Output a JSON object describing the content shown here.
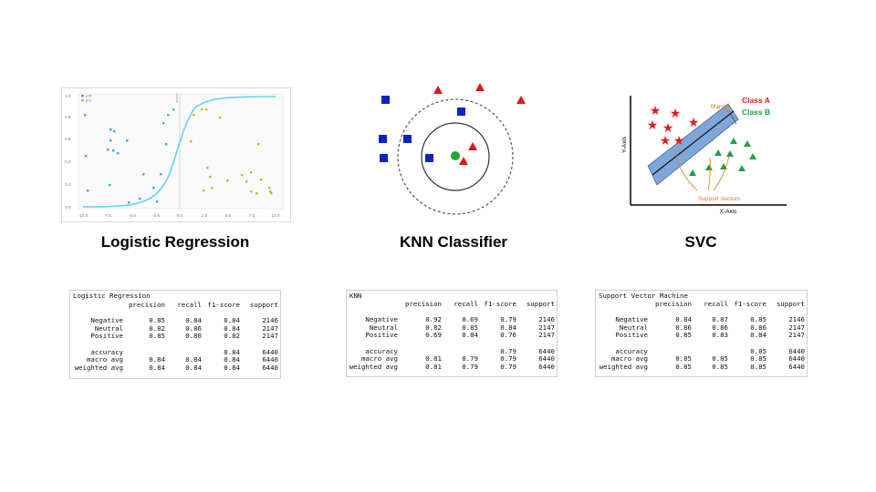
{
  "panels": [
    {
      "title": "Logistic Regression"
    },
    {
      "title": "KNN Classifier"
    },
    {
      "title": "SVC"
    }
  ],
  "logistic_plot": {
    "y_ticks": [
      "0.0",
      "0.2",
      "0.4",
      "0.6",
      "0.8",
      "1.0"
    ],
    "x_ticks": [
      "-10.0",
      "-7.5",
      "-5.0",
      "-2.5",
      "0.0",
      "2.5",
      "5.0",
      "7.5",
      "10.0"
    ],
    "legend": [
      "y=0",
      "y=1"
    ],
    "boundary_label": "thresh",
    "colors": {
      "curve": "#64d2f0",
      "class0": "#3fa9e0",
      "class1": "#d4b12a"
    }
  },
  "svc_diagram": {
    "y_axis_label": "Y-Axis",
    "x_axis_label": "X-Axis",
    "margin_label": "Margin",
    "class_a_label": "Class A",
    "class_b_label": "Class B",
    "support_vectors_label": "Support Vectors",
    "colors": {
      "class_a": "#e31c1c",
      "class_b": "#1ea14a",
      "band": "#7ea6d8",
      "annot": "#e07b1a"
    }
  },
  "knn_diagram": {
    "colors": {
      "square": "#0a22c8",
      "triangle": "#e01616",
      "query": "#22a83a"
    }
  },
  "reports": [
    {
      "name": "Logistic Regression",
      "header": [
        "precision",
        "recall",
        "f1-score",
        "support"
      ],
      "classes": [
        {
          "label": "Negative",
          "precision": "0.85",
          "recall": "0.84",
          "f1": "0.84",
          "support": "2146"
        },
        {
          "label": "Neutral",
          "precision": "0.82",
          "recall": "0.86",
          "f1": "0.84",
          "support": "2147"
        },
        {
          "label": "Positive",
          "precision": "0.85",
          "recall": "0.80",
          "f1": "0.82",
          "support": "2147"
        }
      ],
      "accuracy": {
        "label": "accuracy",
        "f1": "0.84",
        "support": "6440"
      },
      "macro": {
        "label": "macro avg",
        "precision": "0.84",
        "recall": "0.84",
        "f1": "0.84",
        "support": "6440"
      },
      "weighted": {
        "label": "weighted avg",
        "precision": "0.84",
        "recall": "0.84",
        "f1": "0.84",
        "support": "6440"
      }
    },
    {
      "name": "KNN",
      "header": [
        "precision",
        "recall",
        "f1-score",
        "support"
      ],
      "classes": [
        {
          "label": "Negative",
          "precision": "0.92",
          "recall": "0.69",
          "f1": "0.79",
          "support": "2146"
        },
        {
          "label": "Neutral",
          "precision": "0.82",
          "recall": "0.85",
          "f1": "0.84",
          "support": "2147"
        },
        {
          "label": "Positive",
          "precision": "0.69",
          "recall": "0.84",
          "f1": "0.76",
          "support": "2147"
        }
      ],
      "accuracy": {
        "label": "accuracy",
        "f1": "0.79",
        "support": "6440"
      },
      "macro": {
        "label": "macro avg",
        "precision": "0.81",
        "recall": "0.79",
        "f1": "0.79",
        "support": "6440"
      },
      "weighted": {
        "label": "weighted avg",
        "precision": "0.81",
        "recall": "0.79",
        "f1": "0.79",
        "support": "6440"
      }
    },
    {
      "name": "Support Vector Machine",
      "header": [
        "precision",
        "recall",
        "f1-score",
        "support"
      ],
      "classes": [
        {
          "label": "Negative",
          "precision": "0.84",
          "recall": "0.87",
          "f1": "0.85",
          "support": "2146"
        },
        {
          "label": "Neutral",
          "precision": "0.86",
          "recall": "0.86",
          "f1": "0.86",
          "support": "2147"
        },
        {
          "label": "Positive",
          "precision": "0.85",
          "recall": "0.83",
          "f1": "0.84",
          "support": "2147"
        }
      ],
      "accuracy": {
        "label": "accuracy",
        "f1": "0.85",
        "support": "6440"
      },
      "macro": {
        "label": "macro avg",
        "precision": "0.85",
        "recall": "0.85",
        "f1": "0.85",
        "support": "6440"
      },
      "weighted": {
        "label": "weighted avg",
        "precision": "0.85",
        "recall": "0.85",
        "f1": "0.85",
        "support": "6440"
      }
    }
  ]
}
